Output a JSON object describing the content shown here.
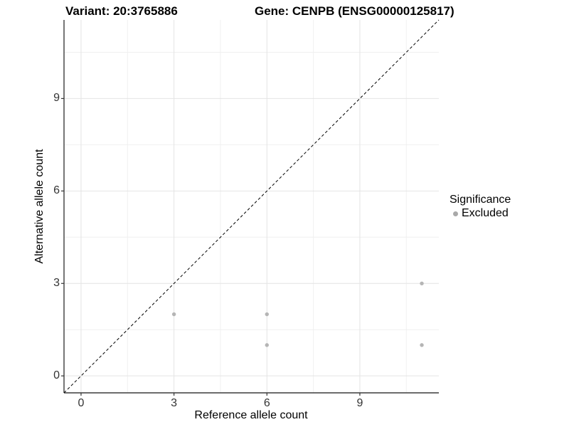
{
  "chart_data": {
    "type": "scatter",
    "title_left": "Variant: 20:3765886",
    "title_right": "Gene: CENPB (ENSG00000125817)",
    "xlabel": "Reference allele count",
    "ylabel": "Alternative allele count",
    "xlim": [
      -0.55,
      11.55
    ],
    "ylim": [
      -0.55,
      11.55
    ],
    "xticks": [
      0,
      3,
      6,
      9
    ],
    "yticks": [
      0,
      3,
      6,
      9
    ],
    "minor_gridlines": [
      1.5,
      4.5,
      7.5,
      10.5
    ],
    "grid": "major and minor gridlines, light gray, white panel",
    "reference_line": {
      "type": "identity y=x",
      "style": "dashed",
      "color": "#000000"
    },
    "series": [
      {
        "name": "Excluded",
        "color": "#b5b5b5",
        "points": [
          [
            3,
            2
          ],
          [
            6,
            2
          ],
          [
            6,
            1
          ],
          [
            11,
            1
          ],
          [
            11,
            3
          ]
        ]
      }
    ],
    "legend": {
      "title": "Significance",
      "position": "right",
      "entries": [
        {
          "label": "Excluded",
          "color": "#a9a9a9"
        }
      ]
    }
  },
  "style": {
    "major_grid_color": "#e4e4e4",
    "minor_grid_color": "#f0f0f0",
    "axis_line_color": "#3c3c3c",
    "tick_color": "#333333",
    "point_radius": 2.7
  }
}
